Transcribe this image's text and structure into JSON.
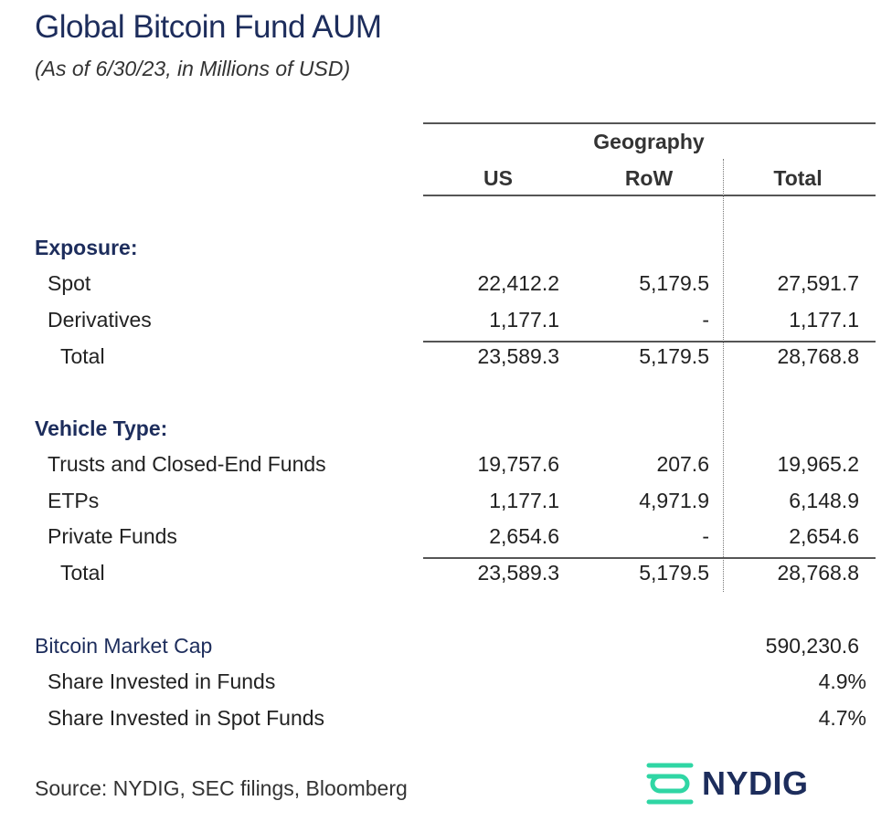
{
  "title": "Global Bitcoin Fund AUM",
  "subtitle": "(As of 6/30/23, in Millions of USD)",
  "header": {
    "group": "Geography",
    "cols": [
      "US",
      "RoW",
      "Total"
    ]
  },
  "exposure": {
    "heading": "Exposure:",
    "rows": [
      {
        "label": "Spot",
        "us": "22,412.2",
        "row": "5,179.5",
        "total": "27,591.7"
      },
      {
        "label": "Derivatives",
        "us": "1,177.1",
        "row": "-",
        "total": "1,177.1"
      }
    ],
    "total": {
      "label": "Total",
      "us": "23,589.3",
      "row": "5,179.5",
      "total": "28,768.8"
    }
  },
  "vehicle": {
    "heading": "Vehicle Type:",
    "rows": [
      {
        "label": "Trusts and Closed-End Funds",
        "us": "19,757.6",
        "row": "207.6",
        "total": "19,965.2"
      },
      {
        "label": "ETPs",
        "us": "1,177.1",
        "row": "4,971.9",
        "total": "6,148.9"
      },
      {
        "label": "Private Funds",
        "us": "2,654.6",
        "row": "-",
        "total": "2,654.6"
      }
    ],
    "total": {
      "label": "Total",
      "us": "23,589.3",
      "row": "5,179.5",
      "total": "28,768.8"
    }
  },
  "market": {
    "label": "Bitcoin Market Cap",
    "value": "590,230.6",
    "shares": [
      {
        "label": "Share Invested in Funds",
        "value": "4.9%"
      },
      {
        "label": "Share Invested in Spot Funds",
        "value": "4.7%"
      }
    ]
  },
  "source": "Source: NYDIG, SEC filings, Bloomberg",
  "logo": {
    "text": "NYDIG",
    "icon": "nydig-logo-icon",
    "icon_color": "#2fd6a4",
    "text_color": "#1d2d5c"
  }
}
